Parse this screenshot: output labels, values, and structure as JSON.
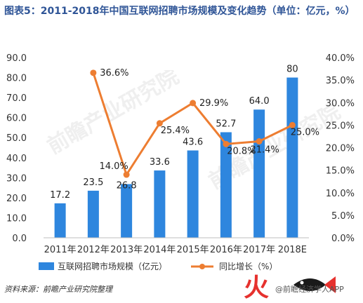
{
  "header": {
    "title": "图表5：2011-2018年中国互联网招聘市场规模及变化趋势（单位：亿元，%）"
  },
  "footer": {
    "source": "资料来源：前瞻产业研究院整理",
    "brand": "@前瞻经济学人APP"
  },
  "logo": {
    "glyph": "火"
  },
  "chart_data": {
    "type": "bar",
    "categories": [
      "2011年",
      "2012年",
      "2013年",
      "2014年",
      "2015年",
      "2016年",
      "2017年",
      "2018E"
    ],
    "series": [
      {
        "name": "互联网招聘市场规模（亿元）",
        "type": "bar",
        "axis": "left",
        "values": [
          17.2,
          23.5,
          26.8,
          33.6,
          43.6,
          52.7,
          64.0,
          80
        ],
        "labels": [
          "17.2",
          "23.5",
          "26.8",
          "33.6",
          "43.6",
          "52.7",
          "64.0",
          "80"
        ],
        "color": "#2e86de"
      },
      {
        "name": "同比增长（%）",
        "type": "line",
        "axis": "right",
        "values": [
          null,
          36.6,
          14.0,
          25.4,
          29.9,
          20.8,
          21.4,
          25.0
        ],
        "labels": [
          "",
          "36.6%",
          "14.0%",
          "25.4%",
          "29.9%",
          "20.8%",
          "21.4%",
          "25.0%"
        ],
        "color": "#ed7d31"
      }
    ],
    "y_left": {
      "min": 0,
      "max": 90,
      "step": 10,
      "ticks": [
        "0.0",
        "10.0",
        "20.0",
        "30.0",
        "40.0",
        "50.0",
        "60.0",
        "70.0",
        "80.0",
        "90.0"
      ]
    },
    "y_right": {
      "min": 0,
      "max": 40,
      "step": 5,
      "ticks": [
        "0.0%",
        "5.0%",
        "10.0%",
        "15.0%",
        "20.0%",
        "25.0%",
        "30.0%",
        "35.0%",
        "40.0%"
      ]
    },
    "grid": false,
    "legend": "bottom"
  }
}
